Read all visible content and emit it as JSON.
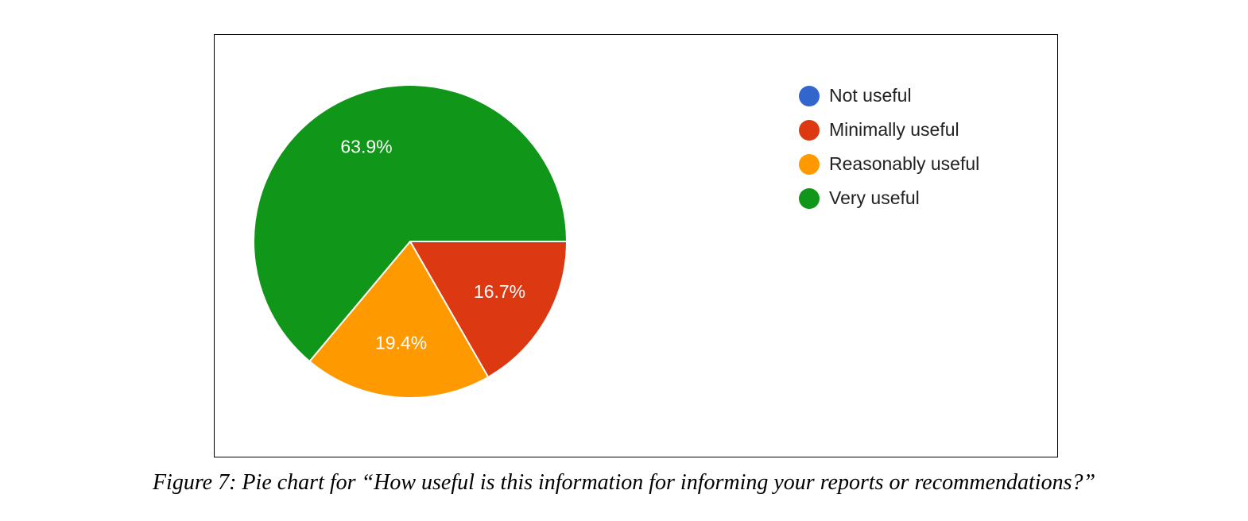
{
  "chart_data": {
    "type": "pie",
    "slices": [
      {
        "label": "Not useful",
        "value": 0,
        "value_label": "",
        "color": "#3366cc"
      },
      {
        "label": "Minimally useful",
        "value": 16.7,
        "value_label": "16.7%",
        "color": "#dc3912"
      },
      {
        "label": "Reasonably useful",
        "value": 19.4,
        "value_label": "19.4%",
        "color": "#ff9900"
      },
      {
        "label": "Very useful",
        "value": 63.9,
        "value_label": "63.9%",
        "color": "#109618"
      }
    ],
    "legend_position": "right"
  },
  "caption": "Figure 7: Pie chart for “How useful is this information for informing your reports or recommendations?”"
}
